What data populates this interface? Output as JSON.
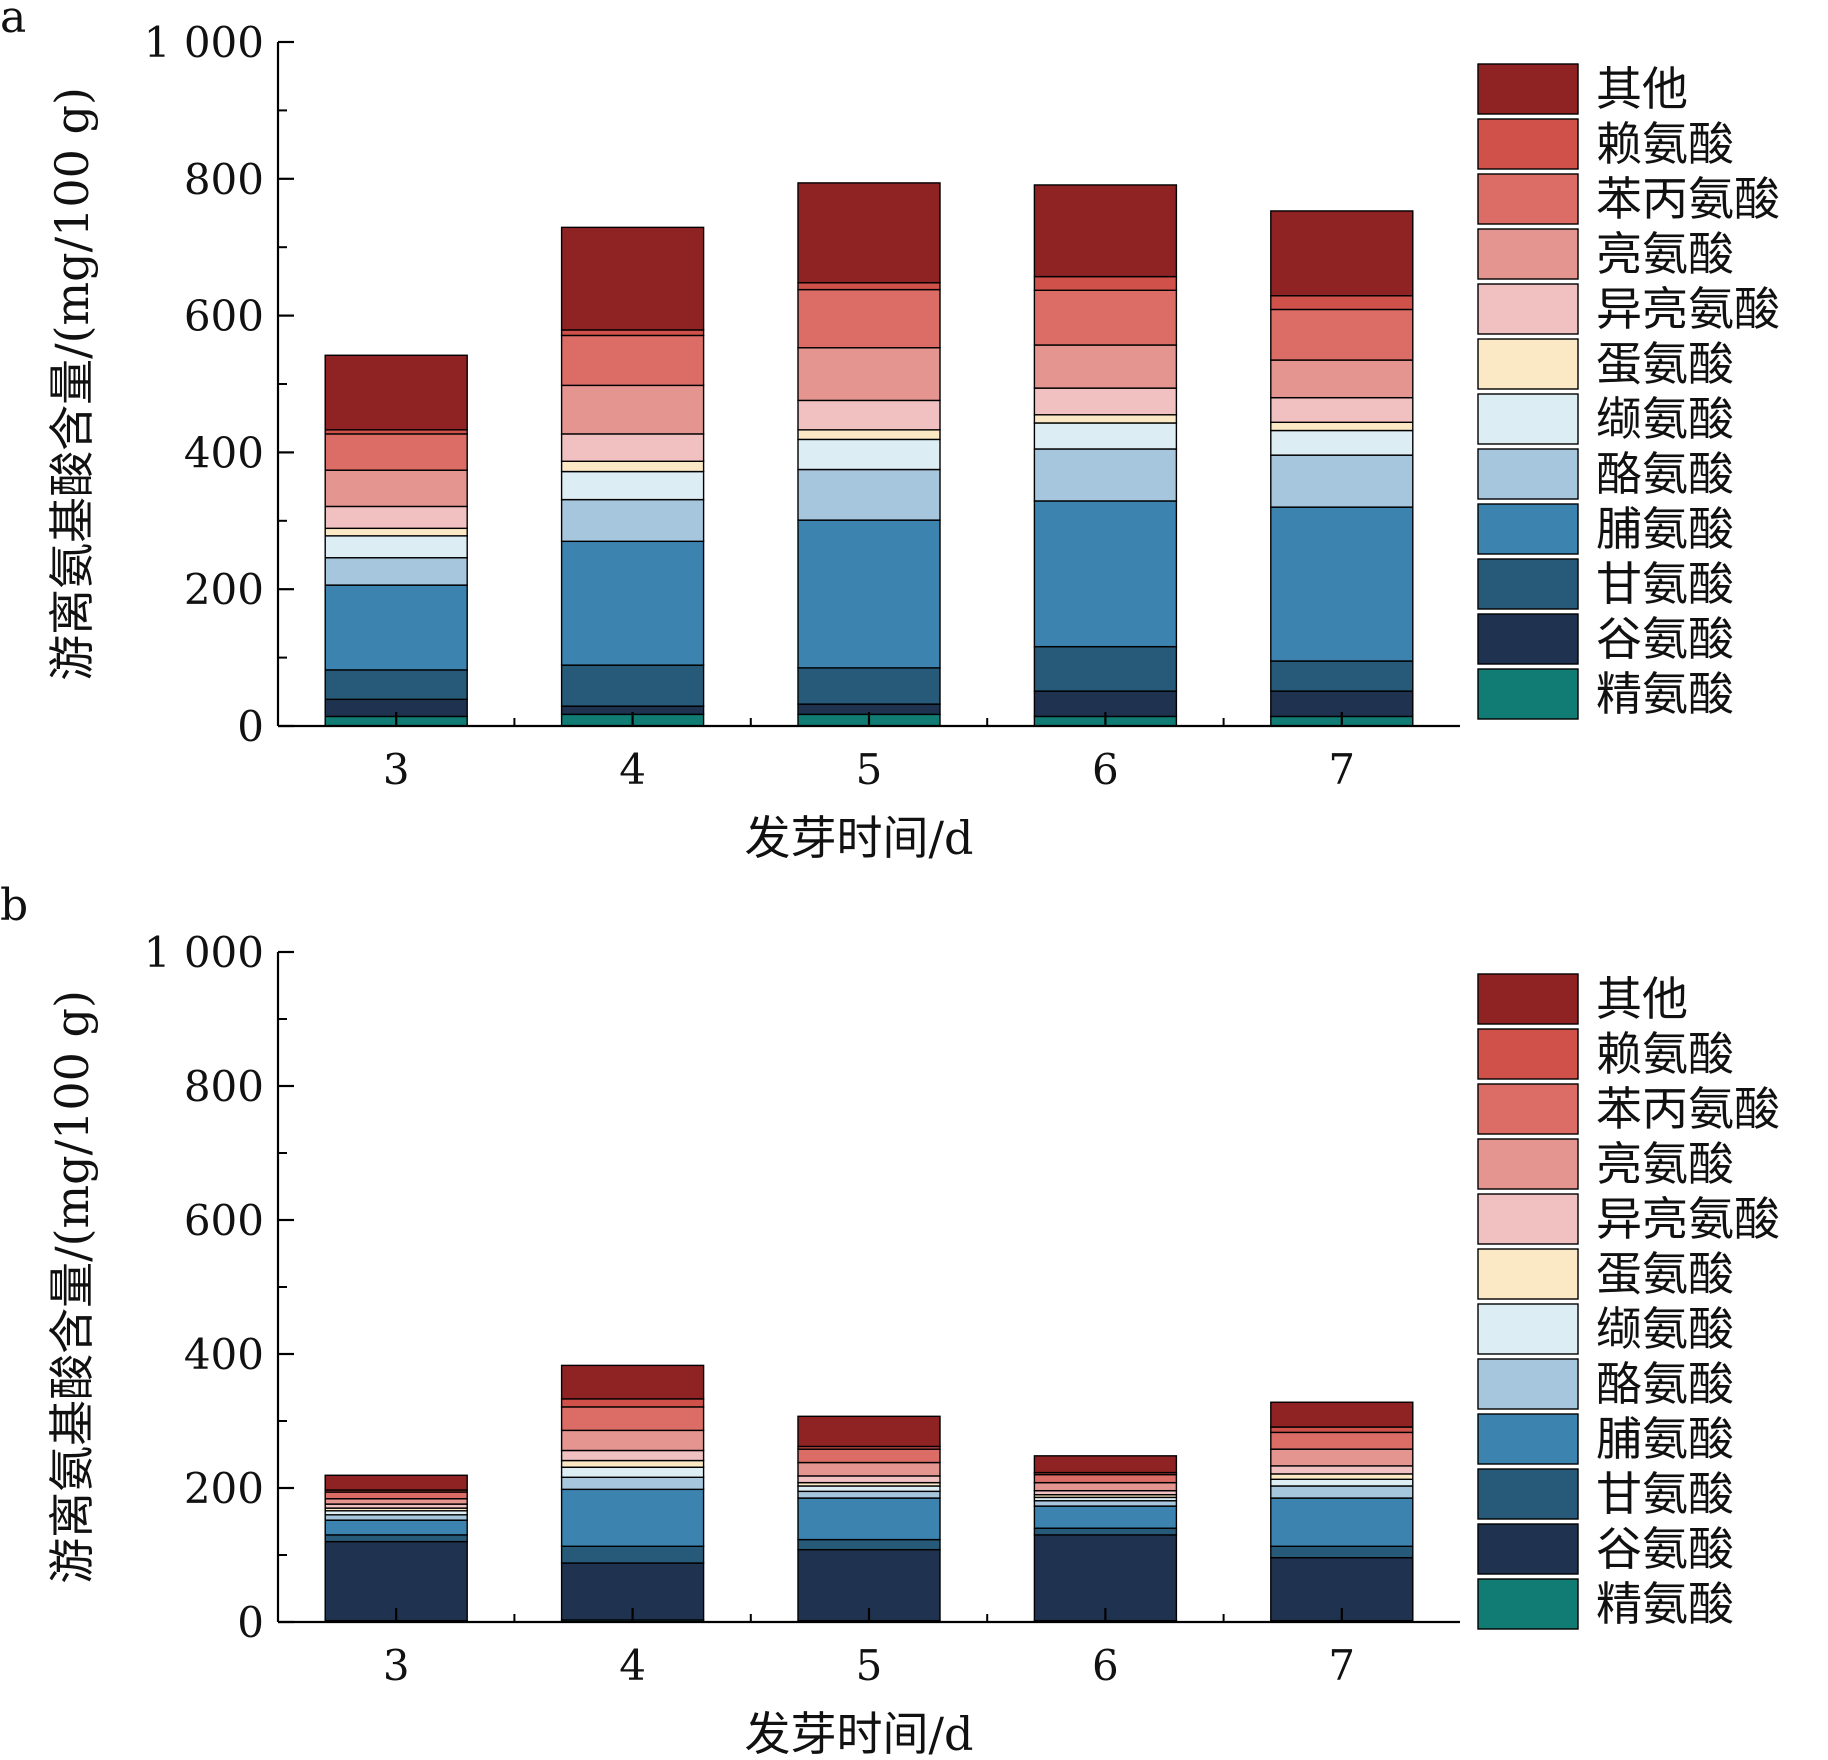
{
  "chart_data": [
    {
      "panel_label": "a",
      "type": "bar",
      "stacked": true,
      "xlabel": "发芽时间/d",
      "ylabel": "游离氨基酸含量/(mg/100 g)",
      "ylim": [
        0,
        1000
      ],
      "yticks": [
        "0",
        "200",
        "400",
        "600",
        "800",
        "1 000"
      ],
      "ytick_values": [
        0,
        200,
        400,
        600,
        800,
        1000
      ],
      "categories": [
        "3",
        "4",
        "5",
        "6",
        "7"
      ],
      "legend_position": "right",
      "series": [
        {
          "name": "精氨酸",
          "color": "#107c74",
          "values": [
            14,
            17,
            17,
            14,
            14
          ]
        },
        {
          "name": "谷氨酸",
          "color": "#1f3350",
          "values": [
            25,
            12,
            15,
            37,
            37
          ]
        },
        {
          "name": "甘氨酸",
          "color": "#275a78",
          "values": [
            43,
            60,
            53,
            65,
            44
          ]
        },
        {
          "name": "脯氨酸",
          "color": "#3c83b0",
          "values": [
            124,
            181,
            216,
            213,
            225
          ]
        },
        {
          "name": "酪氨酸",
          "color": "#a5c6dc",
          "values": [
            40,
            61,
            74,
            76,
            76
          ]
        },
        {
          "name": "缬氨酸",
          "color": "#dcedf4",
          "values": [
            32,
            41,
            44,
            38,
            36
          ]
        },
        {
          "name": "蛋氨酸",
          "color": "#fbe9c5",
          "values": [
            11,
            15,
            14,
            12,
            12
          ]
        },
        {
          "name": "异亮氨酸",
          "color": "#f1c1c1",
          "values": [
            32,
            40,
            43,
            39,
            36
          ]
        },
        {
          "name": "亮氨酸",
          "color": "#e49590",
          "values": [
            53,
            71,
            77,
            63,
            55
          ]
        },
        {
          "name": "苯丙氨酸",
          "color": "#db6d66",
          "values": [
            53,
            73,
            85,
            80,
            74
          ]
        },
        {
          "name": "赖氨酸",
          "color": "#d0504a",
          "values": [
            6,
            8,
            10,
            20,
            20
          ]
        },
        {
          "name": "其他",
          "color": "#8f2223",
          "values": [
            109,
            150,
            146,
            134,
            124
          ]
        }
      ]
    },
    {
      "panel_label": "b",
      "type": "bar",
      "stacked": true,
      "xlabel": "发芽时间/d",
      "ylabel": "游离氨基酸含量/(mg/100 g)",
      "ylim": [
        0,
        1000
      ],
      "yticks": [
        "0",
        "200",
        "400",
        "600",
        "800",
        "1 000"
      ],
      "ytick_values": [
        0,
        200,
        400,
        600,
        800,
        1000
      ],
      "categories": [
        "3",
        "4",
        "5",
        "6",
        "7"
      ],
      "legend_position": "right",
      "series": [
        {
          "name": "精氨酸",
          "color": "#107c74",
          "values": [
            2,
            3,
            2,
            2,
            2
          ]
        },
        {
          "name": "谷氨酸",
          "color": "#1f3350",
          "values": [
            118,
            85,
            106,
            128,
            94
          ]
        },
        {
          "name": "甘氨酸",
          "color": "#275a78",
          "values": [
            10,
            25,
            15,
            10,
            17
          ]
        },
        {
          "name": "脯氨酸",
          "color": "#3c83b0",
          "values": [
            22,
            85,
            62,
            33,
            72
          ]
        },
        {
          "name": "酪氨酸",
          "color": "#a5c6dc",
          "values": [
            8,
            18,
            10,
            8,
            18
          ]
        },
        {
          "name": "缬氨酸",
          "color": "#dcedf4",
          "values": [
            6,
            15,
            8,
            5,
            10
          ]
        },
        {
          "name": "蛋氨酸",
          "color": "#fbe9c5",
          "values": [
            4,
            10,
            5,
            4,
            8
          ]
        },
        {
          "name": "异亮氨酸",
          "color": "#f1c1c1",
          "values": [
            6,
            15,
            10,
            6,
            12
          ]
        },
        {
          "name": "亮氨酸",
          "color": "#e49590",
          "values": [
            8,
            30,
            20,
            12,
            25
          ]
        },
        {
          "name": "苯丙氨酸",
          "color": "#db6d66",
          "values": [
            10,
            35,
            20,
            12,
            25
          ]
        },
        {
          "name": "赖氨酸",
          "color": "#d0504a",
          "values": [
            3,
            12,
            4,
            3,
            8
          ]
        },
        {
          "name": "其他",
          "color": "#8f2223",
          "values": [
            22,
            50,
            45,
            25,
            37
          ]
        }
      ]
    }
  ]
}
